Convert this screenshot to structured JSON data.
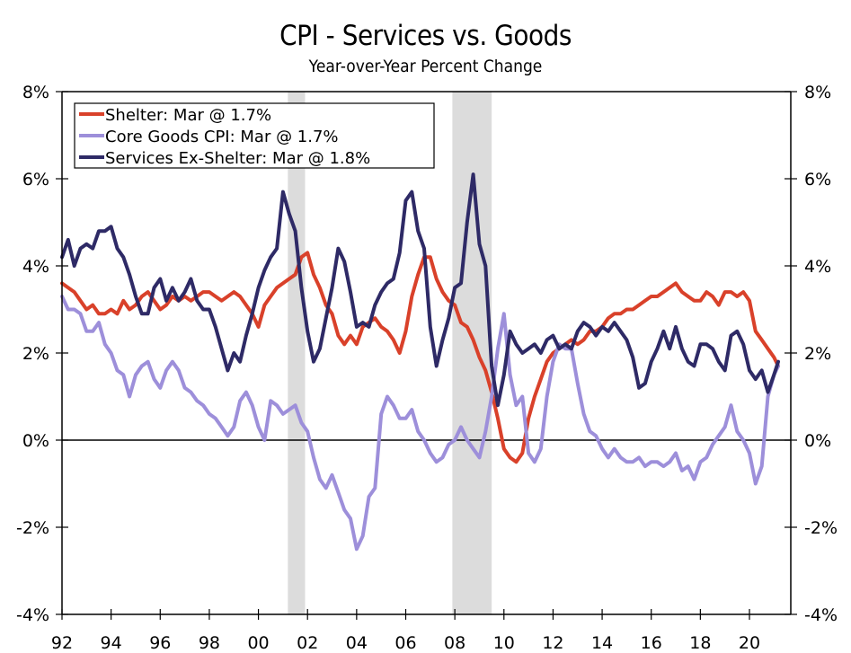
{
  "chart_data": {
    "type": "line",
    "title": "CPI - Services vs. Goods",
    "subtitle": "Year-over-Year Percent Change",
    "xlabel": "",
    "ylabel": "",
    "xlim": [
      1992,
      2021.7
    ],
    "ylim": [
      -4,
      8
    ],
    "yticks": [
      -4,
      -2,
      0,
      2,
      4,
      6,
      8
    ],
    "ytick_labels": [
      "-4%",
      "-2%",
      "0%",
      "2%",
      "4%",
      "6%",
      "8%"
    ],
    "xticks": [
      1992,
      1994,
      1996,
      1998,
      2000,
      2002,
      2004,
      2006,
      2008,
      2010,
      2012,
      2014,
      2016,
      2018,
      2020
    ],
    "xtick_labels": [
      "92",
      "94",
      "96",
      "98",
      "00",
      "02",
      "04",
      "06",
      "08",
      "10",
      "12",
      "14",
      "16",
      "18",
      "20"
    ],
    "legend_position": "top-left",
    "recessions": [
      [
        2001.2,
        2001.9
      ],
      [
        2007.9,
        2009.5
      ]
    ],
    "series": [
      {
        "name": "Shelter: Mar @ 1.7%",
        "color": "#D9412A",
        "x": [
          1992.0,
          1992.25,
          1992.5,
          1992.75,
          1993.0,
          1993.25,
          1993.5,
          1993.75,
          1994.0,
          1994.25,
          1994.5,
          1994.75,
          1995.0,
          1995.25,
          1995.5,
          1995.75,
          1996.0,
          1996.25,
          1996.5,
          1996.75,
          1997.0,
          1997.25,
          1997.5,
          1997.75,
          1998.0,
          1998.25,
          1998.5,
          1998.75,
          1999.0,
          1999.25,
          1999.5,
          1999.75,
          2000.0,
          2000.25,
          2000.5,
          2000.75,
          2001.0,
          2001.25,
          2001.5,
          2001.75,
          2002.0,
          2002.25,
          2002.5,
          2002.75,
          2003.0,
          2003.25,
          2003.5,
          2003.75,
          2004.0,
          2004.25,
          2004.5,
          2004.75,
          2005.0,
          2005.25,
          2005.5,
          2005.75,
          2006.0,
          2006.25,
          2006.5,
          2006.75,
          2007.0,
          2007.25,
          2007.5,
          2007.75,
          2008.0,
          2008.25,
          2008.5,
          2008.75,
          2009.0,
          2009.25,
          2009.5,
          2009.75,
          2010.0,
          2010.25,
          2010.5,
          2010.75,
          2011.0,
          2011.25,
          2011.5,
          2011.75,
          2012.0,
          2012.25,
          2012.5,
          2012.75,
          2013.0,
          2013.25,
          2013.5,
          2013.75,
          2014.0,
          2014.25,
          2014.5,
          2014.75,
          2015.0,
          2015.25,
          2015.5,
          2015.75,
          2016.0,
          2016.25,
          2016.5,
          2016.75,
          2017.0,
          2017.25,
          2017.5,
          2017.75,
          2018.0,
          2018.25,
          2018.5,
          2018.75,
          2019.0,
          2019.25,
          2019.5,
          2019.75,
          2020.0,
          2020.25,
          2020.5,
          2020.75,
          2021.0,
          2021.17
        ],
        "values": [
          3.6,
          3.5,
          3.4,
          3.2,
          3.0,
          3.1,
          2.9,
          2.9,
          3.0,
          2.9,
          3.2,
          3.0,
          3.1,
          3.3,
          3.4,
          3.2,
          3.0,
          3.1,
          3.3,
          3.2,
          3.3,
          3.2,
          3.3,
          3.4,
          3.4,
          3.3,
          3.2,
          3.3,
          3.4,
          3.3,
          3.1,
          2.9,
          2.6,
          3.1,
          3.3,
          3.5,
          3.6,
          3.7,
          3.8,
          4.2,
          4.3,
          3.8,
          3.5,
          3.1,
          2.9,
          2.4,
          2.2,
          2.4,
          2.2,
          2.6,
          2.7,
          2.8,
          2.6,
          2.5,
          2.3,
          2.0,
          2.5,
          3.3,
          3.8,
          4.2,
          4.2,
          3.7,
          3.4,
          3.2,
          3.1,
          2.7,
          2.6,
          2.3,
          1.9,
          1.6,
          1.1,
          0.5,
          -0.2,
          -0.4,
          -0.5,
          -0.3,
          0.5,
          1.0,
          1.4,
          1.8,
          2.0,
          2.1,
          2.2,
          2.3,
          2.2,
          2.3,
          2.5,
          2.5,
          2.6,
          2.8,
          2.9,
          2.9,
          3.0,
          3.0,
          3.1,
          3.2,
          3.3,
          3.3,
          3.4,
          3.5,
          3.6,
          3.4,
          3.3,
          3.2,
          3.2,
          3.4,
          3.3,
          3.1,
          3.4,
          3.4,
          3.3,
          3.4,
          3.2,
          2.5,
          2.3,
          2.1,
          1.9,
          1.7
        ]
      },
      {
        "name": "Core Goods CPI: Mar @ 1.7%",
        "color": "#9D8FDA",
        "x": [
          1992.0,
          1992.25,
          1992.5,
          1992.75,
          1993.0,
          1993.25,
          1993.5,
          1993.75,
          1994.0,
          1994.25,
          1994.5,
          1994.75,
          1995.0,
          1995.25,
          1995.5,
          1995.75,
          1996.0,
          1996.25,
          1996.5,
          1996.75,
          1997.0,
          1997.25,
          1997.5,
          1997.75,
          1998.0,
          1998.25,
          1998.5,
          1998.75,
          1999.0,
          1999.25,
          1999.5,
          1999.75,
          2000.0,
          2000.25,
          2000.5,
          2000.75,
          2001.0,
          2001.25,
          2001.5,
          2001.75,
          2002.0,
          2002.25,
          2002.5,
          2002.75,
          2003.0,
          2003.25,
          2003.5,
          2003.75,
          2004.0,
          2004.25,
          2004.5,
          2004.75,
          2005.0,
          2005.25,
          2005.5,
          2005.75,
          2006.0,
          2006.25,
          2006.5,
          2006.75,
          2007.0,
          2007.25,
          2007.5,
          2007.75,
          2008.0,
          2008.25,
          2008.5,
          2008.75,
          2009.0,
          2009.25,
          2009.5,
          2009.75,
          2010.0,
          2010.25,
          2010.5,
          2010.75,
          2011.0,
          2011.25,
          2011.5,
          2011.75,
          2012.0,
          2012.25,
          2012.5,
          2012.75,
          2013.0,
          2013.25,
          2013.5,
          2013.75,
          2014.0,
          2014.25,
          2014.5,
          2014.75,
          2015.0,
          2015.25,
          2015.5,
          2015.75,
          2016.0,
          2016.25,
          2016.5,
          2016.75,
          2017.0,
          2017.25,
          2017.5,
          2017.75,
          2018.0,
          2018.25,
          2018.5,
          2018.75,
          2019.0,
          2019.25,
          2019.5,
          2019.75,
          2020.0,
          2020.25,
          2020.5,
          2020.75,
          2021.0,
          2021.17
        ],
        "values": [
          3.3,
          3.0,
          3.0,
          2.9,
          2.5,
          2.5,
          2.7,
          2.2,
          2.0,
          1.6,
          1.5,
          1.0,
          1.5,
          1.7,
          1.8,
          1.4,
          1.2,
          1.6,
          1.8,
          1.6,
          1.2,
          1.1,
          0.9,
          0.8,
          0.6,
          0.5,
          0.3,
          0.1,
          0.3,
          0.9,
          1.1,
          0.8,
          0.3,
          0.0,
          0.9,
          0.8,
          0.6,
          0.7,
          0.8,
          0.4,
          0.2,
          -0.4,
          -0.9,
          -1.1,
          -0.8,
          -1.2,
          -1.6,
          -1.8,
          -2.5,
          -2.2,
          -1.3,
          -1.1,
          0.6,
          1.0,
          0.8,
          0.5,
          0.5,
          0.7,
          0.2,
          0.0,
          -0.3,
          -0.5,
          -0.4,
          -0.1,
          0.0,
          0.3,
          0.0,
          -0.2,
          -0.4,
          0.2,
          1.0,
          2.1,
          2.9,
          1.5,
          0.8,
          1.0,
          -0.3,
          -0.5,
          -0.2,
          1.0,
          1.8,
          2.2,
          2.1,
          2.1,
          1.3,
          0.6,
          0.2,
          0.1,
          -0.2,
          -0.4,
          -0.2,
          -0.4,
          -0.5,
          -0.5,
          -0.4,
          -0.6,
          -0.5,
          -0.5,
          -0.6,
          -0.5,
          -0.3,
          -0.7,
          -0.6,
          -0.9,
          -0.5,
          -0.4,
          -0.1,
          0.1,
          0.3,
          0.8,
          0.2,
          0.0,
          -0.3,
          -1.0,
          -0.6,
          1.0,
          1.5,
          1.7
        ]
      },
      {
        "name": "Services Ex-Shelter: Mar @ 1.8%",
        "color": "#2E2A66",
        "x": [
          1992.0,
          1992.25,
          1992.5,
          1992.75,
          1993.0,
          1993.25,
          1993.5,
          1993.75,
          1994.0,
          1994.25,
          1994.5,
          1994.75,
          1995.0,
          1995.25,
          1995.5,
          1995.75,
          1996.0,
          1996.25,
          1996.5,
          1996.75,
          1997.0,
          1997.25,
          1997.5,
          1997.75,
          1998.0,
          1998.25,
          1998.5,
          1998.75,
          1999.0,
          1999.25,
          1999.5,
          1999.75,
          2000.0,
          2000.25,
          2000.5,
          2000.75,
          2001.0,
          2001.25,
          2001.5,
          2001.75,
          2002.0,
          2002.25,
          2002.5,
          2002.75,
          2003.0,
          2003.25,
          2003.5,
          2003.75,
          2004.0,
          2004.25,
          2004.5,
          2004.75,
          2005.0,
          2005.25,
          2005.5,
          2005.75,
          2006.0,
          2006.25,
          2006.5,
          2006.75,
          2007.0,
          2007.25,
          2007.5,
          2007.75,
          2008.0,
          2008.25,
          2008.5,
          2008.75,
          2009.0,
          2009.25,
          2009.5,
          2009.75,
          2010.0,
          2010.25,
          2010.5,
          2010.75,
          2011.0,
          2011.25,
          2011.5,
          2011.75,
          2012.0,
          2012.25,
          2012.5,
          2012.75,
          2013.0,
          2013.25,
          2013.5,
          2013.75,
          2014.0,
          2014.25,
          2014.5,
          2014.75,
          2015.0,
          2015.25,
          2015.5,
          2015.75,
          2016.0,
          2016.25,
          2016.5,
          2016.75,
          2017.0,
          2017.25,
          2017.5,
          2017.75,
          2018.0,
          2018.25,
          2018.5,
          2018.75,
          2019.0,
          2019.25,
          2019.5,
          2019.75,
          2020.0,
          2020.25,
          2020.5,
          2020.75,
          2021.0,
          2021.17
        ],
        "values": [
          4.2,
          4.6,
          4.0,
          4.4,
          4.5,
          4.4,
          4.8,
          4.8,
          4.9,
          4.4,
          4.2,
          3.8,
          3.3,
          2.9,
          2.9,
          3.5,
          3.7,
          3.2,
          3.5,
          3.2,
          3.4,
          3.7,
          3.2,
          3.0,
          3.0,
          2.6,
          2.1,
          1.6,
          2.0,
          1.8,
          2.4,
          2.9,
          3.5,
          3.9,
          4.2,
          4.4,
          5.7,
          5.2,
          4.8,
          3.5,
          2.5,
          1.8,
          2.1,
          2.8,
          3.5,
          4.4,
          4.1,
          3.4,
          2.6,
          2.7,
          2.6,
          3.1,
          3.4,
          3.6,
          3.7,
          4.3,
          5.5,
          5.7,
          4.8,
          4.4,
          2.6,
          1.7,
          2.3,
          2.8,
          3.5,
          3.6,
          5.0,
          6.1,
          4.5,
          4.0,
          1.7,
          0.8,
          1.5,
          2.5,
          2.2,
          2.0,
          2.1,
          2.2,
          2.0,
          2.3,
          2.4,
          2.1,
          2.2,
          2.1,
          2.5,
          2.7,
          2.6,
          2.4,
          2.6,
          2.5,
          2.7,
          2.5,
          2.3,
          1.9,
          1.2,
          1.3,
          1.8,
          2.1,
          2.5,
          2.1,
          2.6,
          2.1,
          1.8,
          1.7,
          2.2,
          2.2,
          2.1,
          1.8,
          1.6,
          2.4,
          2.5,
          2.2,
          1.6,
          1.4,
          1.6,
          1.1,
          1.5,
          1.8
        ]
      }
    ]
  }
}
